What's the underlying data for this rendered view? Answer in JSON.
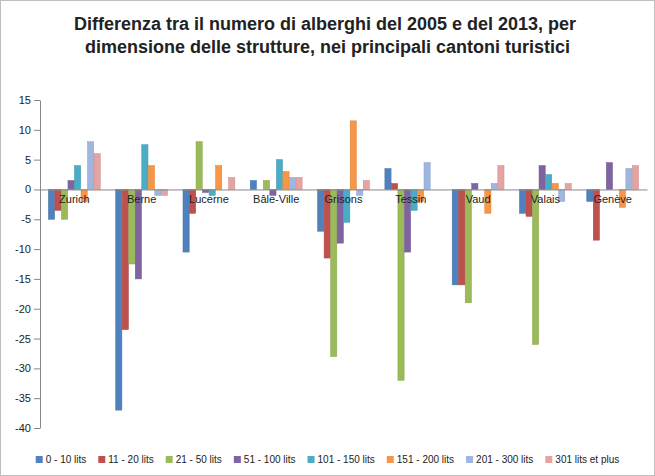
{
  "chart_data": {
    "type": "bar",
    "title": "Differenza tra il numero di alberghi del 2005 e del 2013, per dimensione delle strutture, nei principali cantoni turistici",
    "categories": [
      "Zurich",
      "Berne",
      "Lucerne",
      "Bâle-Ville",
      "Grisons",
      "Tessin",
      "Vaud",
      "Valais",
      "Genève"
    ],
    "series": [
      {
        "name": "0 - 10 lits",
        "color": "#4f81bd",
        "values": [
          -5,
          -37,
          -10.5,
          1.5,
          -7,
          3.5,
          -16,
          -4,
          -2
        ]
      },
      {
        "name": "11 - 20 lits",
        "color": "#c0504d",
        "values": [
          -3.5,
          -23.5,
          -4,
          0,
          -11.5,
          1,
          -16,
          -4.5,
          -8.5
        ]
      },
      {
        "name": "21 - 50 lits",
        "color": "#9bbb59",
        "values": [
          -5,
          -12.5,
          8,
          1.5,
          -28,
          -32,
          -19,
          -26,
          0
        ]
      },
      {
        "name": "51 - 100 lits",
        "color": "#8064a2",
        "values": [
          1.5,
          -15,
          -0.5,
          -1,
          -9,
          -10.5,
          1,
          4,
          4.5
        ]
      },
      {
        "name": "101 - 150 lits",
        "color": "#4bacc6",
        "values": [
          4,
          7.5,
          -1,
          5,
          -5.5,
          -3.5,
          0,
          2.5,
          0
        ]
      },
      {
        "name": "151 - 200 lits",
        "color": "#f79646",
        "values": [
          -2,
          4,
          4,
          3,
          11.5,
          -2,
          -4,
          1,
          -3
        ]
      },
      {
        "name": "201 - 300 lits",
        "color": "#9fb6e0",
        "values": [
          8,
          -1,
          0,
          2,
          -1,
          4.5,
          1,
          -2,
          3.5
        ]
      },
      {
        "name": "301 lits et plus",
        "color": "#e6a3a2",
        "values": [
          6,
          -1,
          2,
          2,
          1.5,
          0,
          4,
          1,
          4
        ]
      }
    ],
    "ylim": [
      -40,
      15
    ],
    "yticks": [
      -40,
      -35,
      -30,
      -25,
      -20,
      -15,
      -10,
      -5,
      0,
      5,
      10,
      15
    ],
    "grid": false,
    "legend": "bottom"
  }
}
